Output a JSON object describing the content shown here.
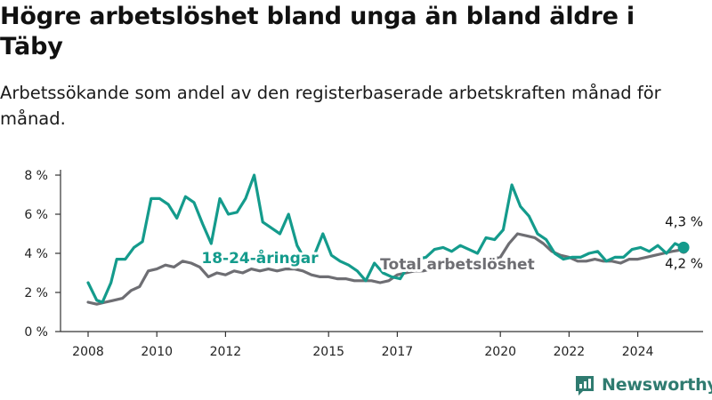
{
  "header": {
    "title": "Högre arbetslöshet bland unga än bland äldre i Täby",
    "subtitle": "Arbetssökande som andel av den registerbaserade arbetskraften månad för månad."
  },
  "logo": {
    "text": "Newsworthy",
    "icon": "bar-chart-icon"
  },
  "colors": {
    "youth": "#149b8c",
    "total": "#6e6e73",
    "axis": "#333333",
    "brand": "#2f7b70"
  },
  "chart_data": {
    "type": "line",
    "title": "Högre arbetslöshet bland unga än bland äldre i Täby",
    "subtitle": "Arbetssökande som andel av den registerbaserade arbetskraften månad för månad.",
    "x_range": [
      "2008-01",
      "2025-12"
    ],
    "ylim": [
      0,
      8
    ],
    "y_ticks": [
      0,
      2,
      4,
      6,
      8
    ],
    "y_tick_labels": [
      "0 %",
      "2 %",
      "4 %",
      "6 %",
      "8 %"
    ],
    "x_ticks": [
      "2008-01",
      "2010-01",
      "2012-01",
      "2015-01",
      "2017-01",
      "2020-01",
      "2022-01",
      "2024-01"
    ],
    "x_tick_labels": [
      "2008",
      "2010",
      "2012",
      "2015",
      "2017",
      "2020",
      "2022",
      "2024"
    ],
    "grid": false,
    "series": [
      {
        "name": "18-24-åringar",
        "color": "#149b8c",
        "label_at": "2013-01",
        "end_label": "4,3 %",
        "points": [
          [
            "2008-01",
            2.5
          ],
          [
            "2008-04",
            1.6
          ],
          [
            "2008-06",
            1.5
          ],
          [
            "2008-09",
            2.5
          ],
          [
            "2008-11",
            3.7
          ],
          [
            "2009-02",
            3.7
          ],
          [
            "2009-05",
            4.3
          ],
          [
            "2009-08",
            4.6
          ],
          [
            "2009-11",
            6.8
          ],
          [
            "2010-02",
            6.8
          ],
          [
            "2010-05",
            6.5
          ],
          [
            "2010-08",
            5.8
          ],
          [
            "2010-11",
            6.9
          ],
          [
            "2011-02",
            6.6
          ],
          [
            "2011-05",
            5.5
          ],
          [
            "2011-08",
            4.5
          ],
          [
            "2011-11",
            6.8
          ],
          [
            "2012-02",
            6.0
          ],
          [
            "2012-05",
            6.1
          ],
          [
            "2012-08",
            6.8
          ],
          [
            "2012-11",
            8.0
          ],
          [
            "2013-02",
            5.6
          ],
          [
            "2013-05",
            5.3
          ],
          [
            "2013-08",
            5.0
          ],
          [
            "2013-11",
            6.0
          ],
          [
            "2014-02",
            4.4
          ],
          [
            "2014-05",
            3.6
          ],
          [
            "2014-08",
            3.9
          ],
          [
            "2014-11",
            5.0
          ],
          [
            "2015-02",
            3.9
          ],
          [
            "2015-05",
            3.6
          ],
          [
            "2015-08",
            3.4
          ],
          [
            "2015-11",
            3.1
          ],
          [
            "2016-02",
            2.6
          ],
          [
            "2016-05",
            3.5
          ],
          [
            "2016-08",
            3.0
          ],
          [
            "2016-11",
            2.8
          ],
          [
            "2017-02",
            2.7
          ],
          [
            "2017-05",
            3.4
          ],
          [
            "2017-08",
            3.7
          ],
          [
            "2017-11",
            3.8
          ],
          [
            "2018-02",
            4.2
          ],
          [
            "2018-05",
            4.3
          ],
          [
            "2018-08",
            4.1
          ],
          [
            "2018-11",
            4.4
          ],
          [
            "2019-02",
            4.2
          ],
          [
            "2019-05",
            4.0
          ],
          [
            "2019-08",
            4.8
          ],
          [
            "2019-11",
            4.7
          ],
          [
            "2020-02",
            5.2
          ],
          [
            "2020-05",
            7.5
          ],
          [
            "2020-08",
            6.4
          ],
          [
            "2020-11",
            5.9
          ],
          [
            "2021-02",
            5.0
          ],
          [
            "2021-05",
            4.7
          ],
          [
            "2021-08",
            4.0
          ],
          [
            "2021-11",
            3.7
          ],
          [
            "2022-02",
            3.8
          ],
          [
            "2022-05",
            3.8
          ],
          [
            "2022-08",
            4.0
          ],
          [
            "2022-11",
            4.1
          ],
          [
            "2023-02",
            3.6
          ],
          [
            "2023-05",
            3.8
          ],
          [
            "2023-08",
            3.8
          ],
          [
            "2023-11",
            4.2
          ],
          [
            "2024-02",
            4.3
          ],
          [
            "2024-05",
            4.1
          ],
          [
            "2024-08",
            4.4
          ],
          [
            "2024-11",
            4.0
          ],
          [
            "2025-02",
            4.5
          ],
          [
            "2025-05",
            4.3
          ]
        ]
      },
      {
        "name": "Total arbetslöshet",
        "color": "#6e6e73",
        "label_at": "2018-10",
        "end_label": "4,2 %",
        "points": [
          [
            "2008-01",
            1.5
          ],
          [
            "2008-04",
            1.4
          ],
          [
            "2008-07",
            1.5
          ],
          [
            "2008-10",
            1.6
          ],
          [
            "2009-01",
            1.7
          ],
          [
            "2009-04",
            2.1
          ],
          [
            "2009-07",
            2.3
          ],
          [
            "2009-10",
            3.1
          ],
          [
            "2010-01",
            3.2
          ],
          [
            "2010-04",
            3.4
          ],
          [
            "2010-07",
            3.3
          ],
          [
            "2010-10",
            3.6
          ],
          [
            "2011-01",
            3.5
          ],
          [
            "2011-04",
            3.3
          ],
          [
            "2011-07",
            2.8
          ],
          [
            "2011-10",
            3.0
          ],
          [
            "2012-01",
            2.9
          ],
          [
            "2012-04",
            3.1
          ],
          [
            "2012-07",
            3.0
          ],
          [
            "2012-10",
            3.2
          ],
          [
            "2013-01",
            3.1
          ],
          [
            "2013-04",
            3.2
          ],
          [
            "2013-07",
            3.1
          ],
          [
            "2013-10",
            3.2
          ],
          [
            "2014-01",
            3.2
          ],
          [
            "2014-04",
            3.1
          ],
          [
            "2014-07",
            2.9
          ],
          [
            "2014-10",
            2.8
          ],
          [
            "2015-01",
            2.8
          ],
          [
            "2015-04",
            2.7
          ],
          [
            "2015-07",
            2.7
          ],
          [
            "2015-10",
            2.6
          ],
          [
            "2016-01",
            2.6
          ],
          [
            "2016-04",
            2.6
          ],
          [
            "2016-07",
            2.5
          ],
          [
            "2016-10",
            2.6
          ],
          [
            "2017-01",
            2.9
          ],
          [
            "2017-04",
            3.0
          ],
          [
            "2017-07",
            3.1
          ],
          [
            "2017-10",
            3.1
          ],
          [
            "2018-01",
            3.2
          ],
          [
            "2018-04",
            3.3
          ],
          [
            "2018-07",
            3.3
          ],
          [
            "2018-10",
            3.4
          ],
          [
            "2019-01",
            3.4
          ],
          [
            "2019-04",
            3.5
          ],
          [
            "2019-07",
            3.6
          ],
          [
            "2019-10",
            3.7
          ],
          [
            "2020-01",
            3.8
          ],
          [
            "2020-04",
            4.5
          ],
          [
            "2020-07",
            5.0
          ],
          [
            "2020-10",
            4.9
          ],
          [
            "2021-01",
            4.8
          ],
          [
            "2021-04",
            4.5
          ],
          [
            "2021-07",
            4.1
          ],
          [
            "2021-10",
            3.9
          ],
          [
            "2022-01",
            3.8
          ],
          [
            "2022-04",
            3.6
          ],
          [
            "2022-07",
            3.6
          ],
          [
            "2022-10",
            3.7
          ],
          [
            "2023-01",
            3.6
          ],
          [
            "2023-04",
            3.6
          ],
          [
            "2023-07",
            3.5
          ],
          [
            "2023-10",
            3.7
          ],
          [
            "2024-01",
            3.7
          ],
          [
            "2024-04",
            3.8
          ],
          [
            "2024-07",
            3.9
          ],
          [
            "2024-10",
            4.0
          ],
          [
            "2025-01",
            4.1
          ],
          [
            "2025-05",
            4.2
          ]
        ]
      }
    ]
  }
}
